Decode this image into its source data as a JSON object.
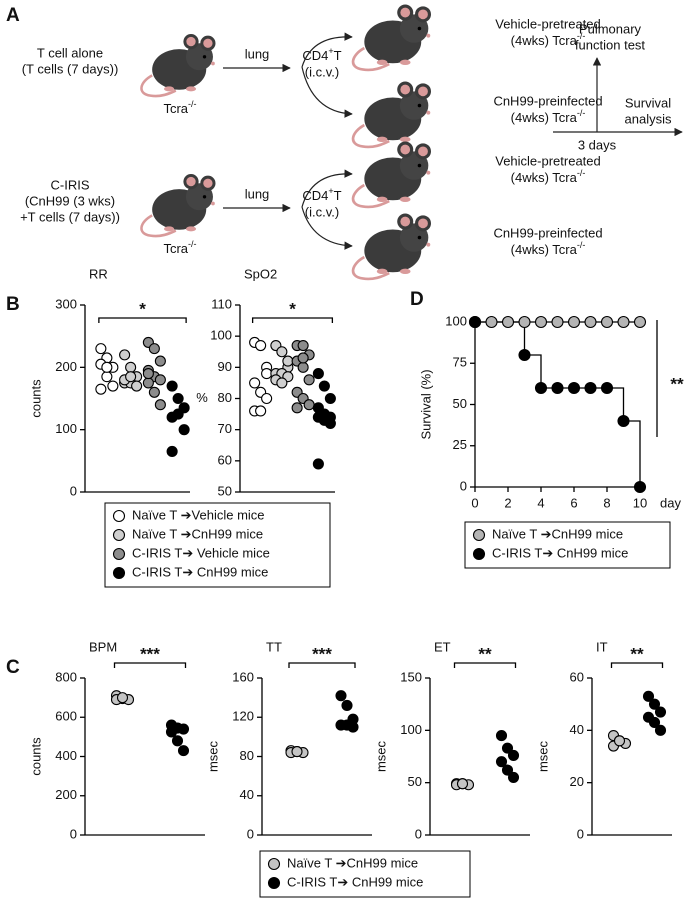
{
  "panel_labels": [
    "A",
    "B",
    "C",
    "D"
  ],
  "schematic": {
    "rows": [
      {
        "donor": [
          "T cell alone",
          "(T cells (7 days))"
        ],
        "strain": "Tcra",
        "strain_sup": "-/-",
        "route": "lung",
        "cells": "CD4",
        "cells_sup": "+",
        "cells_rest": "T",
        "injection": "(i.c.v.)",
        "recipients": [
          {
            "treatment": "Vehicle-pretreated",
            "duration": "(4wks) Tcra",
            "duration_sup": "-/-"
          },
          {
            "treatment": "CnH99-preinfected",
            "duration": "(4wks) Tcra",
            "duration_sup": "-/-"
          }
        ]
      },
      {
        "donor": [
          "C-IRIS",
          "(CnH99 (3 wks)",
          "+T cells (7 days))"
        ],
        "strain": "Tcra",
        "strain_sup": "-/-",
        "route": "lung",
        "cells": "CD4",
        "cells_sup": "+",
        "cells_rest": "T",
        "injection": "(i.c.v.)",
        "recipients": [
          {
            "treatment": "Vehicle-pretreated",
            "duration": "(4wks) Tcra",
            "duration_sup": "-/-"
          },
          {
            "treatment": "CnH99-preinfected",
            "duration": "(4wks) Tcra",
            "duration_sup": "-/-"
          }
        ]
      }
    ],
    "readout_top": [
      "Pulmonary",
      "function test"
    ],
    "readout_right": [
      "Survival",
      "analysis"
    ],
    "interval": "3 days"
  },
  "chart_data": [
    {
      "type": "dot",
      "title": "RR",
      "ylabel": "counts",
      "ylim": [
        0,
        300
      ],
      "yticks": [
        0,
        100,
        200,
        300
      ],
      "significance": "*",
      "series": [
        {
          "name": "Naïve T ➔Vehicle mice",
          "color": "#ffffff",
          "values": [
            230,
            215,
            200,
            205,
            185,
            170,
            165,
            200
          ]
        },
        {
          "name": "Naïve T ➔CnH99 mice",
          "color": "#cfcfcf",
          "values": [
            220,
            200,
            185,
            175,
            175,
            170,
            180,
            185
          ]
        },
        {
          "name": "C-IRIS T➔ Vehicle mice",
          "color": "#8c8c8c",
          "values": [
            240,
            230,
            210,
            195,
            185,
            180,
            175,
            160,
            140,
            190
          ]
        },
        {
          "name": "C-IRIS T➔ CnH99 mice",
          "color": "#000000",
          "values": [
            170,
            150,
            135,
            120,
            125,
            100,
            65
          ]
        }
      ]
    },
    {
      "type": "dot",
      "title": "SpO2",
      "ylabel": "%",
      "ylim": [
        50,
        110
      ],
      "yticks": [
        50,
        60,
        70,
        80,
        90,
        100,
        110
      ],
      "significance": "*",
      "series": [
        {
          "color": "#ffffff",
          "values": [
            98,
            97,
            90,
            85,
            82,
            80,
            76,
            76,
            88
          ]
        },
        {
          "color": "#cfcfcf",
          "values": [
            97,
            95,
            90,
            88,
            88,
            87,
            86,
            85,
            92
          ]
        },
        {
          "color": "#8c8c8c",
          "values": [
            97,
            97,
            94,
            92,
            90,
            86,
            82,
            80,
            78,
            77,
            93
          ]
        },
        {
          "color": "#000000",
          "values": [
            88,
            84,
            80,
            77,
            75,
            74,
            74,
            73,
            72,
            59
          ]
        }
      ]
    },
    {
      "type": "line",
      "step": true,
      "ylabel": "Survival (%)",
      "xlabel": "day",
      "xlim": [
        0,
        10
      ],
      "xticks": [
        0,
        2,
        4,
        6,
        8,
        10
      ],
      "ylim": [
        0,
        100
      ],
      "yticks": [
        0,
        25,
        50,
        75,
        100
      ],
      "significance": "**",
      "series": [
        {
          "name": "Naïve T ➔CnH99 mice",
          "color": "#b4b4b4",
          "x": [
            0,
            1,
            2,
            3,
            4,
            5,
            6,
            7,
            8,
            9,
            10
          ],
          "values": [
            100,
            100,
            100,
            100,
            100,
            100,
            100,
            100,
            100,
            100,
            100
          ]
        },
        {
          "name": "C-IRIS T➔ CnH99 mice",
          "color": "#000000",
          "x": [
            0,
            3,
            4,
            5,
            6,
            7,
            8,
            9,
            10
          ],
          "values": [
            100,
            80,
            60,
            60,
            60,
            60,
            60,
            40,
            0
          ]
        }
      ]
    },
    {
      "type": "dot",
      "title": "BPM",
      "ylabel": "counts",
      "ylim": [
        0,
        800
      ],
      "yticks": [
        0,
        200,
        400,
        600,
        800
      ],
      "significance": "***",
      "series": [
        {
          "name": "Naïve T ➔CnH99 mice",
          "color": "#c4c4c4",
          "values": [
            710,
            695,
            690,
            690,
            700
          ]
        },
        {
          "name": "C-IRIS T➔ CnH99 mice",
          "color": "#000000",
          "values": [
            560,
            545,
            540,
            525,
            480,
            430
          ]
        }
      ]
    },
    {
      "type": "dot",
      "title": "TT",
      "ylabel": "msec",
      "ylim": [
        0,
        160
      ],
      "yticks": [
        0,
        40,
        80,
        120,
        160
      ],
      "significance": "***",
      "series": [
        {
          "color": "#c4c4c4",
          "values": [
            86,
            85,
            84,
            84,
            85
          ]
        },
        {
          "color": "#000000",
          "values": [
            142,
            132,
            118,
            112,
            112,
            110
          ]
        }
      ]
    },
    {
      "type": "dot",
      "title": "ET",
      "ylabel": "msec",
      "ylim": [
        0,
        150
      ],
      "yticks": [
        0,
        50,
        100,
        150
      ],
      "significance": "**",
      "series": [
        {
          "color": "#c4c4c4",
          "values": [
            49,
            49,
            48,
            48,
            49
          ]
        },
        {
          "color": "#000000",
          "values": [
            95,
            83,
            76,
            70,
            62,
            55
          ]
        }
      ]
    },
    {
      "type": "dot",
      "title": "IT",
      "ylabel": "msec",
      "ylim": [
        0,
        60
      ],
      "yticks": [
        0,
        20,
        40,
        60
      ],
      "significance": "**",
      "series": [
        {
          "color": "#c4c4c4",
          "values": [
            38,
            36,
            35,
            34,
            36
          ]
        },
        {
          "color": "#000000",
          "values": [
            53,
            50,
            47,
            45,
            43,
            40
          ]
        }
      ]
    }
  ]
}
